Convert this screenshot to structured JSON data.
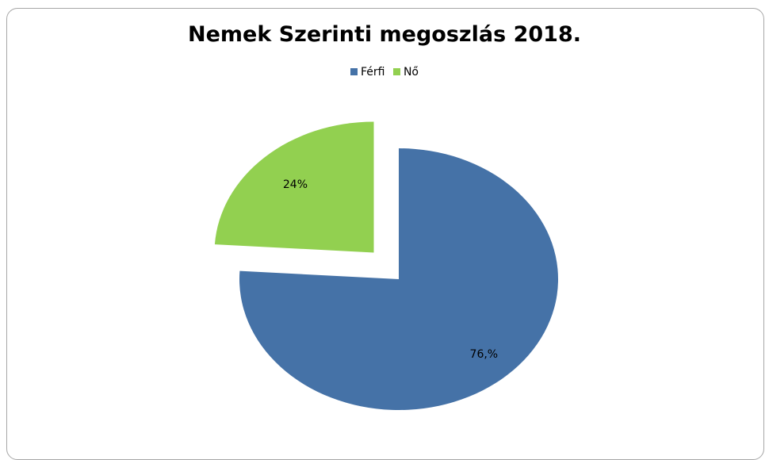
{
  "chart_data": {
    "type": "pie",
    "title": "Nemek Szerinti megoszlás 2018.",
    "legend_position": "top",
    "series": [
      {
        "name": "",
        "slices": [
          {
            "label": "Férfi",
            "value": 76,
            "data_label": "76,%",
            "color": "#4572a7",
            "exploded": false
          },
          {
            "label": "Nő",
            "value": 24,
            "data_label": "24%",
            "color": "#92d050",
            "exploded": true
          }
        ]
      }
    ]
  }
}
